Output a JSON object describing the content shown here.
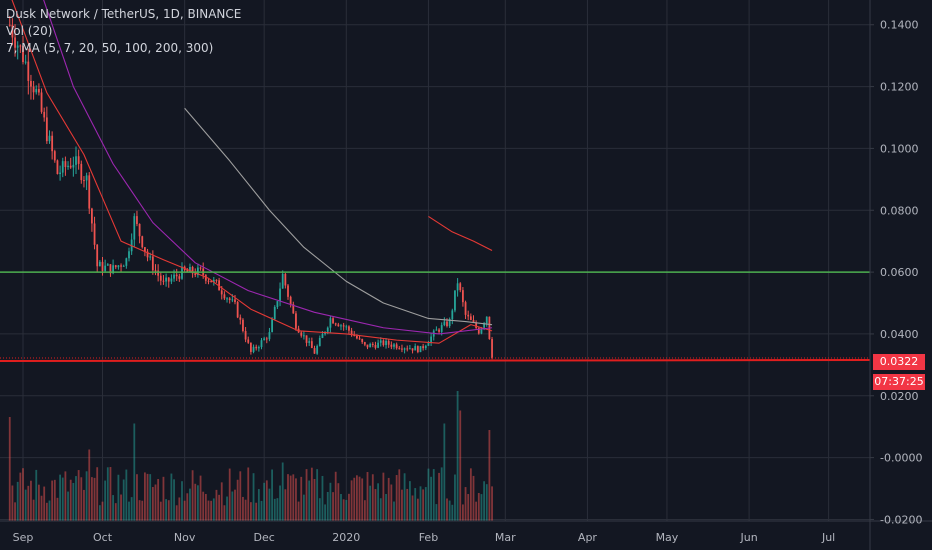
{
  "legend": {
    "symbol": "Dusk Network / TetherUS, 1D, BINANCE",
    "vol": "Vol (20)",
    "ma": "7, MA (5, 7, 20, 50, 100, 200, 300)"
  },
  "last_price_label": "0.0322",
  "countdown_label": "07:37:25",
  "colors": {
    "background": "#131722",
    "grid": "#2a2e39",
    "up": "#26a69a",
    "down": "#ef5350",
    "support": "#e01e1e",
    "resistance": "#4caf50",
    "ma_fast": "#2962ff",
    "ma_mid": "#e53935",
    "ma_slow": "#9c27b0",
    "ma_long": "#9e9e9e"
  },
  "chart_data": {
    "type": "candlestick",
    "y_ticks": [
      "0.1400",
      "0.1200",
      "0.1000",
      "0.0800",
      "0.0600",
      "0.0400",
      "0.0200",
      "-0.0000",
      "-0.0200"
    ],
    "y_tick_values": [
      0.14,
      0.12,
      0.1,
      0.08,
      0.06,
      0.04,
      0.02,
      0.0,
      -0.02
    ],
    "x_ticks": [
      "Sep",
      "Oct",
      "Nov",
      "Dec",
      "2020",
      "Feb",
      "Mar",
      "Apr",
      "May",
      "Jun",
      "Jul"
    ],
    "x_tick_dates": [
      "2019-09-01",
      "2019-10-01",
      "2019-11-01",
      "2019-12-01",
      "2020-01-01",
      "2020-02-01",
      "2020-03-01",
      "2020-04-01",
      "2020-05-01",
      "2020-06-01",
      "2020-07-01"
    ],
    "ylim": [
      -0.0205,
      0.148
    ],
    "horizontal_lines": [
      {
        "name": "resistance",
        "value": 0.06
      },
      {
        "name": "support",
        "value": 0.0322
      }
    ],
    "last_price": 0.0322,
    "price_anchors": [
      [
        "2019-08-27",
        0.14
      ],
      [
        "2019-09-01",
        0.13
      ],
      [
        "2019-09-06",
        0.118
      ],
      [
        "2019-09-10",
        0.105
      ],
      [
        "2019-09-14",
        0.092
      ],
      [
        "2019-09-20",
        0.096
      ],
      [
        "2019-09-25",
        0.09
      ],
      [
        "2019-09-29",
        0.062
      ],
      [
        "2019-10-05",
        0.061
      ],
      [
        "2019-10-10",
        0.064
      ],
      [
        "2019-10-13",
        0.077
      ],
      [
        "2019-10-18",
        0.065
      ],
      [
        "2019-10-24",
        0.056
      ],
      [
        "2019-10-31",
        0.06
      ],
      [
        "2019-11-07",
        0.06
      ],
      [
        "2019-11-13",
        0.056
      ],
      [
        "2019-11-20",
        0.049
      ],
      [
        "2019-11-26",
        0.034
      ],
      [
        "2019-12-03",
        0.04
      ],
      [
        "2019-12-08",
        0.059
      ],
      [
        "2019-12-13",
        0.043
      ],
      [
        "2019-12-20",
        0.034
      ],
      [
        "2019-12-26",
        0.045
      ],
      [
        "2020-01-01",
        0.042
      ],
      [
        "2020-01-08",
        0.036
      ],
      [
        "2020-01-15",
        0.037
      ],
      [
        "2020-01-22",
        0.036
      ],
      [
        "2020-01-29",
        0.035
      ],
      [
        "2020-02-04",
        0.041
      ],
      [
        "2020-02-09",
        0.044
      ],
      [
        "2020-02-12",
        0.057
      ],
      [
        "2020-02-15",
        0.046
      ],
      [
        "2020-02-20",
        0.041
      ],
      [
        "2020-02-23",
        0.046
      ],
      [
        "2020-02-25",
        0.0322
      ]
    ],
    "ma_lines": [
      {
        "name": "MA 20",
        "color": "#e53935",
        "points": [
          [
            "2019-08-27",
            0.15
          ],
          [
            "2019-09-10",
            0.118
          ],
          [
            "2019-09-24",
            0.098
          ],
          [
            "2019-10-08",
            0.07
          ],
          [
            "2019-10-24",
            0.064
          ],
          [
            "2019-11-10",
            0.058
          ],
          [
            "2019-11-26",
            0.048
          ],
          [
            "2019-12-14",
            0.041
          ],
          [
            "2020-01-01",
            0.04
          ],
          [
            "2020-01-20",
            0.038
          ],
          [
            "2020-02-05",
            0.037
          ],
          [
            "2020-02-17",
            0.043
          ],
          [
            "2020-02-25",
            0.041
          ]
        ]
      },
      {
        "name": "MA 50",
        "color": "#9c27b0",
        "points": [
          [
            "2019-09-08",
            0.15
          ],
          [
            "2019-09-20",
            0.12
          ],
          [
            "2019-10-05",
            0.095
          ],
          [
            "2019-10-20",
            0.076
          ],
          [
            "2019-11-05",
            0.063
          ],
          [
            "2019-11-25",
            0.054
          ],
          [
            "2019-12-20",
            0.047
          ],
          [
            "2020-01-15",
            0.042
          ],
          [
            "2020-02-05",
            0.04
          ],
          [
            "2020-02-25",
            0.042
          ]
        ]
      },
      {
        "name": "MA 100",
        "color": "#9e9e9e",
        "points": [
          [
            "2019-11-01",
            0.113
          ],
          [
            "2019-11-18",
            0.096
          ],
          [
            "2019-12-03",
            0.08
          ],
          [
            "2019-12-16",
            0.068
          ],
          [
            "2020-01-01",
            0.057
          ],
          [
            "2020-01-15",
            0.05
          ],
          [
            "2020-02-01",
            0.045
          ],
          [
            "2020-02-15",
            0.044
          ],
          [
            "2020-02-25",
            0.043
          ]
        ]
      },
      {
        "name": "MA 200",
        "color": "#e53935",
        "points": [
          [
            "2020-02-01",
            0.078
          ],
          [
            "2020-02-10",
            0.073
          ],
          [
            "2020-02-18",
            0.07
          ],
          [
            "2020-02-25",
            0.067
          ]
        ]
      }
    ],
    "volume_spikes": [
      [
        "2019-08-27",
        0.8
      ],
      [
        "2019-09-26",
        0.55
      ],
      [
        "2019-10-13",
        0.75
      ],
      [
        "2019-12-08",
        0.45
      ],
      [
        "2020-02-07",
        0.75
      ],
      [
        "2020-02-12",
        1.0
      ],
      [
        "2020-02-13",
        0.85
      ],
      [
        "2020-02-24",
        0.7
      ]
    ]
  }
}
